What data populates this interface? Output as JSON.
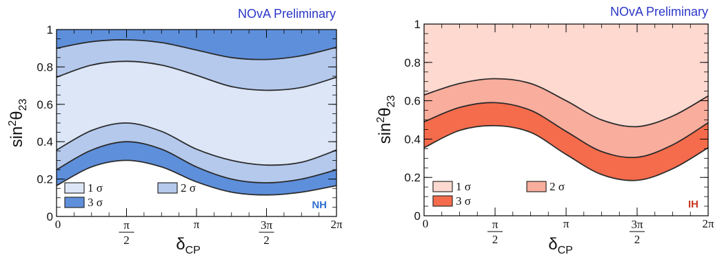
{
  "chart_data": [
    {
      "type": "area",
      "title": "NOvA Preliminary",
      "hierarchy_label": "NH",
      "xlabel": "δ",
      "xlabel_sub": "CP",
      "ylabel_base": "sin",
      "ylabel_sup": "2",
      "ylabel_theta": "θ",
      "ylabel_sub": "23",
      "xlim": [
        0,
        6.2832
      ],
      "ylim": [
        0,
        1
      ],
      "x_ticks": [
        {
          "value": 0,
          "label": "0"
        },
        {
          "value": 1.5708,
          "num": "π",
          "den": "2"
        },
        {
          "value": 3.1416,
          "label": "π"
        },
        {
          "value": 4.7124,
          "num": "3π",
          "den": "2"
        },
        {
          "value": 6.2832,
          "label": "2π"
        }
      ],
      "y_ticks": [
        {
          "value": 0,
          "label": "0"
        },
        {
          "value": 0.2,
          "label": "0.2"
        },
        {
          "value": 0.4,
          "label": "0.4"
        },
        {
          "value": 0.6,
          "label": "0.6"
        },
        {
          "value": 0.8,
          "label": "0.8"
        },
        {
          "value": 1,
          "label": "1"
        }
      ],
      "x": [
        0,
        0.7854,
        1.5708,
        2.3562,
        3.1416,
        3.927,
        4.7124,
        5.4978,
        6.2832
      ],
      "contours": [
        {
          "name": "3σ upper",
          "y": [
            0.9,
            0.935,
            0.945,
            0.93,
            0.89,
            0.85,
            0.84,
            0.86,
            0.905
          ]
        },
        {
          "name": "2σ upper",
          "y": [
            0.745,
            0.81,
            0.83,
            0.81,
            0.755,
            0.695,
            0.675,
            0.69,
            0.745
          ]
        },
        {
          "name": "1σ lower",
          "y": [
            0.355,
            0.46,
            0.5,
            0.455,
            0.36,
            0.3,
            0.275,
            0.29,
            0.355
          ]
        },
        {
          "name": "2σ lower",
          "y": [
            0.25,
            0.355,
            0.4,
            0.36,
            0.265,
            0.2,
            0.18,
            0.2,
            0.25
          ]
        },
        {
          "name": "3σ lower",
          "y": [
            0.165,
            0.265,
            0.3,
            0.265,
            0.185,
            0.13,
            0.115,
            0.13,
            0.165
          ]
        }
      ],
      "bands": [
        {
          "level": "1 σ",
          "color": "#dce6f7",
          "between": [
            "2σ upper",
            "1σ lower"
          ]
        },
        {
          "level": "2 σ",
          "color": "#b4c9ec",
          "between": [
            "3σ upper",
            "2σ upper"
          ]
        },
        {
          "level": "2 σ",
          "color": "#b4c9ec",
          "between": [
            "1σ lower",
            "2σ lower"
          ]
        },
        {
          "level": "3 σ",
          "color": "#5e8fdb",
          "between": [
            "top",
            "3σ upper"
          ]
        },
        {
          "level": "3 σ",
          "color": "#5e8fdb",
          "between": [
            "2σ lower",
            "3σ lower"
          ]
        }
      ],
      "legend": [
        {
          "label": "1 σ",
          "color": "#dce6f7"
        },
        {
          "label": "2 σ",
          "color": "#b4c9ec"
        },
        {
          "label": "3 σ",
          "color": "#5e8fdb"
        }
      ],
      "legend_position": "bottom-left",
      "tag_color": "#2e6fd0"
    },
    {
      "type": "area",
      "title": "NOvA Preliminary",
      "hierarchy_label": "IH",
      "xlabel": "δ",
      "xlabel_sub": "CP",
      "ylabel_base": "sin",
      "ylabel_sup": "2",
      "ylabel_theta": "θ",
      "ylabel_sub": "23",
      "xlim": [
        0,
        6.2832
      ],
      "ylim": [
        0,
        1
      ],
      "x_ticks": [
        {
          "value": 0,
          "label": "0"
        },
        {
          "value": 1.5708,
          "num": "π",
          "den": "2"
        },
        {
          "value": 3.1416,
          "label": "π"
        },
        {
          "value": 4.7124,
          "num": "3π",
          "den": "2"
        },
        {
          "value": 6.2832,
          "label": "2π"
        }
      ],
      "y_ticks": [
        {
          "value": 0,
          "label": "0"
        },
        {
          "value": 0.2,
          "label": "0.2"
        },
        {
          "value": 0.4,
          "label": "0.4"
        },
        {
          "value": 0.6,
          "label": "0.6"
        },
        {
          "value": 0.8,
          "label": "0.8"
        },
        {
          "value": 1,
          "label": "1"
        }
      ],
      "x": [
        0,
        0.7854,
        1.5708,
        2.3562,
        3.1416,
        3.927,
        4.7124,
        5.4978,
        6.2832
      ],
      "contours": [
        {
          "name": "1σ lower",
          "y": [
            0.63,
            0.69,
            0.715,
            0.69,
            0.6,
            0.5,
            0.465,
            0.52,
            0.625
          ]
        },
        {
          "name": "2σ lower",
          "y": [
            0.49,
            0.565,
            0.59,
            0.55,
            0.44,
            0.335,
            0.305,
            0.37,
            0.485
          ]
        },
        {
          "name": "3σ lower",
          "y": [
            0.355,
            0.445,
            0.47,
            0.435,
            0.32,
            0.215,
            0.185,
            0.245,
            0.355
          ]
        }
      ],
      "bands": [
        {
          "level": "1 σ",
          "color": "#fdd9d0",
          "between": [
            "top",
            "1σ lower"
          ]
        },
        {
          "level": "2 σ",
          "color": "#f9ad9d",
          "between": [
            "1σ lower",
            "2σ lower"
          ]
        },
        {
          "level": "3 σ",
          "color": "#f56c4c",
          "between": [
            "2σ lower",
            "3σ lower"
          ]
        }
      ],
      "legend": [
        {
          "label": "1 σ",
          "color": "#fdd9d0"
        },
        {
          "label": "2 σ",
          "color": "#f9ad9d"
        },
        {
          "label": "3 σ",
          "color": "#f56c4c"
        }
      ],
      "legend_position": "bottom-left",
      "tag_color": "#c8361d"
    }
  ]
}
